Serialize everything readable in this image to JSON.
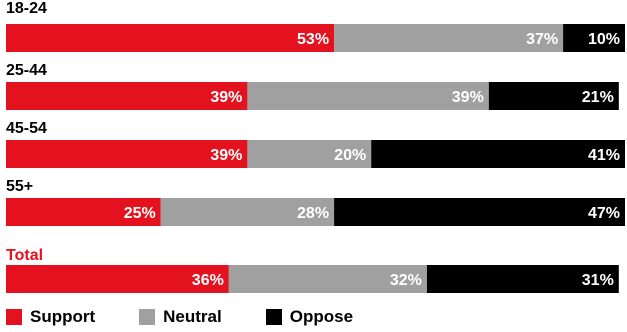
{
  "chart_data": {
    "type": "bar",
    "orientation": "horizontal-stacked",
    "categories": [
      "18-24",
      "25-44",
      "45-54",
      "55+",
      "Total"
    ],
    "series": [
      {
        "name": "Support",
        "color": "#e4111e",
        "values": [
          53,
          39,
          39,
          25,
          36
        ],
        "labels": [
          "53%",
          "39%",
          "39%",
          "25%",
          "36%"
        ]
      },
      {
        "name": "Neutral",
        "color": "#a0a0a0",
        "values": [
          37,
          39,
          20,
          28,
          32
        ],
        "labels": [
          "37%",
          "39%",
          "20%",
          "28%",
          "32%"
        ]
      },
      {
        "name": "Oppose",
        "color": "#000000",
        "values": [
          10,
          21,
          41,
          47,
          31
        ],
        "labels": [
          "10%",
          "21%",
          "41%",
          "47%",
          "31%"
        ]
      }
    ],
    "xlim": [
      0,
      100
    ],
    "highlight_category": "Total",
    "highlight_color": "#e4111e",
    "legend_position": "bottom-left",
    "grid": false
  }
}
